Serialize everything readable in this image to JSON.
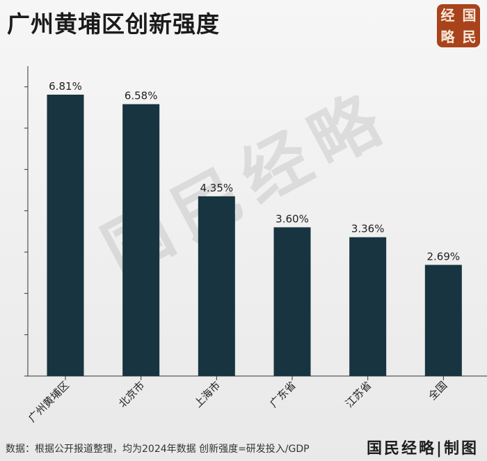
{
  "title": "广州黄埔区创新强度",
  "logo": {
    "chars": [
      "经",
      "国",
      "略",
      "民"
    ]
  },
  "watermark": "国民经略",
  "footer": {
    "note": "数据：根据公开报道整理，均为2024年数据   创新强度=研发投入/GDP",
    "brand": "国民经略|制图"
  },
  "colors": {
    "bar": "#173440",
    "axis": "#333333",
    "logo_bg": "#a8431c"
  },
  "chart_data": {
    "type": "bar",
    "title": "广州黄埔区创新强度",
    "categories": [
      "广州黄埔区",
      "北京市",
      "上海市",
      "广东省",
      "江苏省",
      "全国"
    ],
    "values": [
      6.81,
      6.58,
      4.35,
      3.6,
      3.36,
      2.69
    ],
    "value_labels": [
      "6.81%",
      "6.58%",
      "4.35%",
      "3.60%",
      "3.36%",
      "2.69%"
    ],
    "ylim": [
      0,
      7.5
    ],
    "y_ticks": [
      0,
      1,
      2,
      3,
      4,
      5,
      6,
      7
    ],
    "y_tick_labels_visible": false,
    "grid": false,
    "xlabel": "",
    "ylabel": ""
  }
}
